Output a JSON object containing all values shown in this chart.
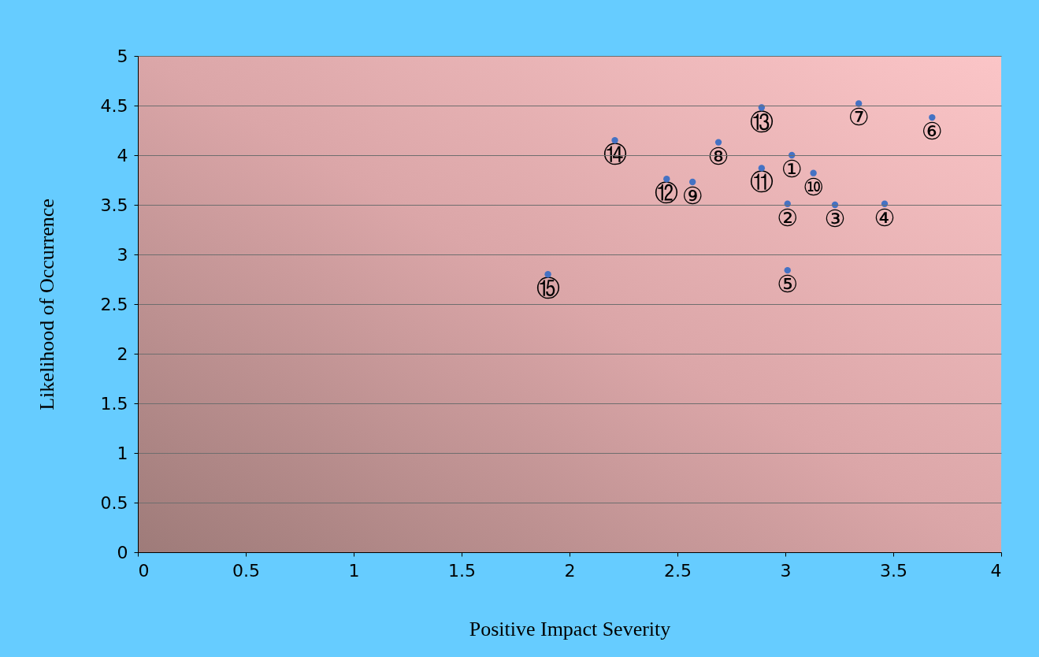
{
  "chart_data": {
    "type": "scatter",
    "xlabel": "Positive Impact Severity",
    "ylabel": "Likelihood of Occurrence",
    "x": [
      3.03,
      3.01,
      3.23,
      3.46,
      3.01,
      3.68,
      3.34,
      2.69,
      2.57,
      3.13,
      2.89,
      2.45,
      2.89,
      2.21,
      1.9
    ],
    "values": [
      4.0,
      3.51,
      3.5,
      3.51,
      2.84,
      4.38,
      4.52,
      4.13,
      3.73,
      3.82,
      3.87,
      3.76,
      4.48,
      4.15,
      2.8
    ],
    "value_labels": [
      "①",
      "②",
      "③",
      "④",
      "⑤",
      "⑥",
      "⑦",
      "⑧",
      "⑨",
      "⑩",
      "⑪",
      "⑫",
      "⑬",
      "⑭",
      "⑮"
    ],
    "color": "#4472c4",
    "marker": "circle",
    "xlim": [
      0,
      4
    ],
    "xticks": [
      0,
      0.5,
      1,
      1.5,
      2,
      2.5,
      3,
      3.5,
      4
    ],
    "ylim": [
      0,
      5
    ],
    "yticks": [
      0,
      0.5,
      1,
      1.5,
      2,
      2.5,
      3,
      3.5,
      4,
      4.5,
      5
    ],
    "grid": "y"
  }
}
